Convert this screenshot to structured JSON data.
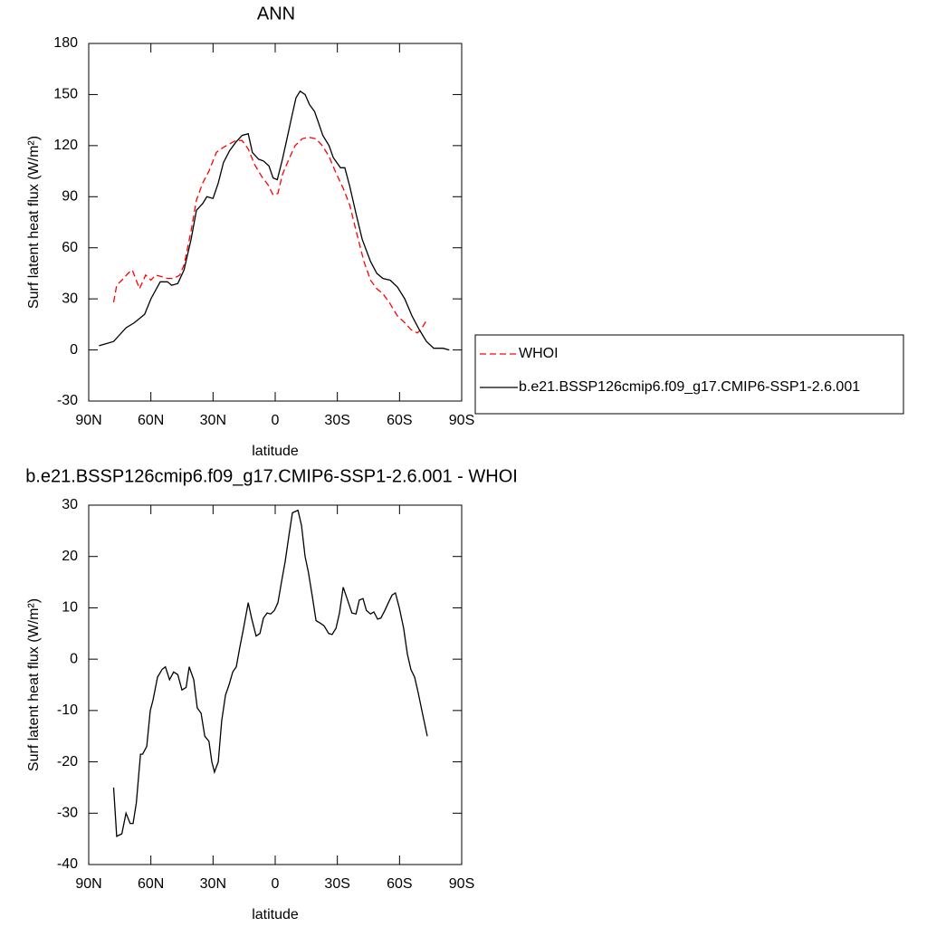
{
  "chart_data": [
    {
      "type": "line",
      "title": "ANN",
      "xlabel": "latitude",
      "ylabel": "Surf latent heat flux (W/m²)",
      "xlim": [
        90,
        -90
      ],
      "xticks": [
        {
          "value": 90,
          "label": "90N"
        },
        {
          "value": 60,
          "label": "60N"
        },
        {
          "value": 30,
          "label": "30N"
        },
        0,
        {
          "value": -30,
          "label": "30S"
        },
        {
          "value": -60,
          "label": "60S"
        },
        {
          "value": -90,
          "label": "90S"
        }
      ],
      "ylim": [
        -30,
        180
      ],
      "yticks": [
        -30,
        0,
        30,
        60,
        90,
        120,
        150,
        180
      ],
      "legend": "right",
      "series": [
        {
          "name": "WHOI",
          "color": "#ff0000",
          "dash": true,
          "x": [
            78,
            76.5,
            74,
            71,
            69,
            65.5,
            62.5,
            60,
            57.7,
            54.6,
            52,
            49,
            46,
            44,
            40.6,
            38,
            35,
            32,
            28.4,
            25,
            22,
            19,
            16,
            13,
            10,
            6.6,
            3.5,
            1,
            -1.3,
            -3.5,
            -6.6,
            -9.6,
            -13,
            -16,
            -19.7,
            -22.7,
            -25.8,
            -29.3,
            -32.8,
            -36,
            -39,
            -42.8,
            -46,
            -49,
            -52,
            -55,
            -59,
            -62.5,
            -65.5,
            -68.6,
            -70.3,
            -73.4
          ],
          "values": [
            28,
            38,
            41,
            45,
            47,
            36,
            44,
            41,
            44,
            43,
            42,
            42,
            44,
            50,
            70,
            88,
            98,
            105,
            116,
            119,
            121,
            123,
            123,
            118,
            109,
            102,
            97,
            91,
            92,
            103,
            112,
            120,
            124,
            125,
            124,
            120,
            114,
            104,
            95,
            85,
            70,
            52,
            41,
            36,
            33,
            28,
            20,
            16,
            12,
            10,
            12,
            18
          ]
        },
        {
          "name": "b.e21.BSSP126cmip6.f09_g17.CMIP6-SSP1-2.6.001",
          "color": "#000000",
          "dash": false,
          "x": [
            85,
            78,
            72,
            68,
            63,
            60,
            55.5,
            52,
            50,
            47,
            44,
            40.6,
            38,
            35,
            33,
            30,
            27.5,
            25,
            22,
            19,
            16,
            13,
            11,
            8,
            5.7,
            3,
            1,
            -1,
            -3.5,
            -5.7,
            -8,
            -10,
            -12,
            -14.4,
            -16.6,
            -19,
            -21,
            -23,
            -26,
            -28,
            -31.5,
            -33.6,
            -36,
            -39,
            -42,
            -46,
            -49,
            -52,
            -55.5,
            -59,
            -62.5,
            -66,
            -69.5,
            -73,
            -76.5,
            -81,
            -84
          ],
          "values": [
            2.5,
            5,
            13,
            16,
            21,
            30,
            40,
            40,
            38,
            39,
            47,
            65,
            82,
            86,
            90,
            89,
            98,
            110,
            117,
            122,
            126,
            127,
            116,
            112,
            111,
            108,
            101,
            100,
            112,
            124,
            137,
            148,
            152,
            150,
            144,
            140,
            133,
            126,
            120,
            113,
            107,
            107,
            96,
            80,
            65,
            52,
            45,
            42,
            41,
            37,
            30,
            20,
            12,
            5,
            1,
            1,
            0
          ]
        }
      ]
    },
    {
      "type": "line",
      "title": "b.e21.BSSP126cmip6.f09_g17.CMIP6-SSP1-2.6.001 - WHOI",
      "xlabel": "latitude",
      "ylabel": "Surf latent heat flux (W/m²)",
      "xlim": [
        90,
        -90
      ],
      "xticks": [
        {
          "value": 90,
          "label": "90N"
        },
        {
          "value": 60,
          "label": "60N"
        },
        {
          "value": 30,
          "label": "30N"
        },
        0,
        {
          "value": -30,
          "label": "30S"
        },
        {
          "value": -60,
          "label": "60S"
        },
        {
          "value": -90,
          "label": "90S"
        }
      ],
      "ylim": [
        -40,
        30
      ],
      "yticks": [
        -40,
        -30,
        -20,
        -10,
        0,
        10,
        20,
        30
      ],
      "series": [
        {
          "color": "#000000",
          "dash": false,
          "x": [
            78,
            76.5,
            74,
            72,
            70,
            68.6,
            67,
            65,
            64,
            62,
            60.3,
            59,
            56.8,
            54.6,
            53,
            51,
            49,
            47,
            45,
            43,
            41.5,
            39.3,
            37.6,
            35.8,
            34,
            32,
            30.6,
            29.3,
            27.5,
            25.8,
            24,
            22.3,
            20.5,
            18.8,
            17,
            15.3,
            13,
            11.4,
            9.2,
            7.4,
            5.7,
            3.9,
            2.2,
            0.4,
            -1.3,
            -3,
            -4.8,
            -6.6,
            -8.3,
            -11,
            -12.7,
            -14.4,
            -16,
            -18,
            -19.7,
            -21.8,
            -23.6,
            -25.8,
            -27.5,
            -29.3,
            -31,
            -32.8,
            -34.5,
            -37,
            -39,
            -40.6,
            -42.4,
            -44,
            -46,
            -47.6,
            -49.4,
            -51,
            -52.9,
            -54.6,
            -56.4,
            -58,
            -59.9,
            -62,
            -63.8,
            -65.5,
            -67.3,
            -69,
            -71.3,
            -73.4
          ],
          "values": [
            -25,
            -34.5,
            -34,
            -30,
            -32,
            -32,
            -28,
            -18.5,
            -18.5,
            -17,
            -10,
            -8,
            -3.5,
            -2,
            -1.5,
            -4,
            -2.5,
            -3,
            -6,
            -5.5,
            -1.5,
            -4,
            -9.5,
            -10.5,
            -15,
            -16,
            -20,
            -22,
            -20,
            -12,
            -7,
            -5,
            -2.5,
            -1.5,
            2.5,
            6,
            11,
            8,
            4.5,
            5,
            8,
            9,
            8.8,
            9.5,
            11,
            15,
            19,
            24,
            28.5,
            29,
            26,
            20,
            17,
            12,
            7.5,
            7,
            6.5,
            5,
            4.8,
            6,
            9,
            14,
            12,
            9,
            8.8,
            11.5,
            11.8,
            9.5,
            8.8,
            9.2,
            7.8,
            8,
            9.5,
            11,
            12.5,
            12.9,
            10,
            6,
            1,
            -2,
            -3.5,
            -6.5,
            -11,
            -15
          ]
        }
      ]
    }
  ]
}
